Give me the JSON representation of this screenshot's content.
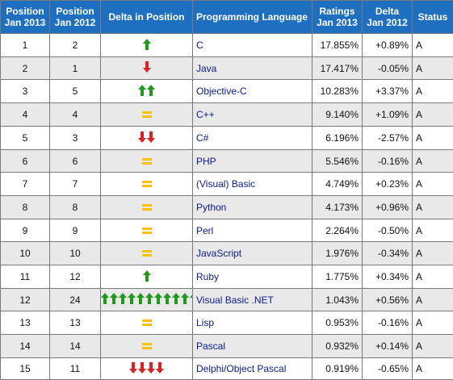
{
  "headers": {
    "pos2013": [
      "Position",
      "Jan 2013"
    ],
    "pos2012": [
      "Position",
      "Jan 2012"
    ],
    "delta_pos": "Delta in Position",
    "language": "Programming Language",
    "ratings": [
      "Ratings",
      "Jan 2013"
    ],
    "delta": [
      "Delta",
      "Jan 2012"
    ],
    "status": "Status"
  },
  "colors": {
    "header_bg": "#1e6fbf",
    "up_arrow": "#1f9a1f",
    "down_arrow": "#e02020",
    "equal": "#ffc000",
    "language_text": "#0b1a8c"
  },
  "rows": [
    {
      "pos2013": "1",
      "pos2012": "2",
      "delta_icon": {
        "type": "up",
        "count": 1
      },
      "language": "C",
      "rating": "17.855%",
      "delta": "+0.89%",
      "status": "A"
    },
    {
      "pos2013": "2",
      "pos2012": "1",
      "delta_icon": {
        "type": "down",
        "count": 1
      },
      "language": "Java",
      "rating": "17.417%",
      "delta": "-0.05%",
      "status": "A"
    },
    {
      "pos2013": "3",
      "pos2012": "5",
      "delta_icon": {
        "type": "up",
        "count": 2
      },
      "language": "Objective-C",
      "rating": "10.283%",
      "delta": "+3.37%",
      "status": "A"
    },
    {
      "pos2013": "4",
      "pos2012": "4",
      "delta_icon": {
        "type": "equal",
        "count": 1
      },
      "language": "C++",
      "rating": "9.140%",
      "delta": "+1.09%",
      "status": "A"
    },
    {
      "pos2013": "5",
      "pos2012": "3",
      "delta_icon": {
        "type": "down",
        "count": 2
      },
      "language": "C#",
      "rating": "6.196%",
      "delta": "-2.57%",
      "status": "A"
    },
    {
      "pos2013": "6",
      "pos2012": "6",
      "delta_icon": {
        "type": "equal",
        "count": 1
      },
      "language": "PHP",
      "rating": "5.546%",
      "delta": "-0.16%",
      "status": "A"
    },
    {
      "pos2013": "7",
      "pos2012": "7",
      "delta_icon": {
        "type": "equal",
        "count": 1
      },
      "language": "(Visual) Basic",
      "rating": "4.749%",
      "delta": "+0.23%",
      "status": "A"
    },
    {
      "pos2013": "8",
      "pos2012": "8",
      "delta_icon": {
        "type": "equal",
        "count": 1
      },
      "language": "Python",
      "rating": "4.173%",
      "delta": "+0.96%",
      "status": "A"
    },
    {
      "pos2013": "9",
      "pos2012": "9",
      "delta_icon": {
        "type": "equal",
        "count": 1
      },
      "language": "Perl",
      "rating": "2.264%",
      "delta": "-0.50%",
      "status": "A"
    },
    {
      "pos2013": "10",
      "pos2012": "10",
      "delta_icon": {
        "type": "equal",
        "count": 1
      },
      "language": "JavaScript",
      "rating": "1.976%",
      "delta": "-0.34%",
      "status": "A"
    },
    {
      "pos2013": "11",
      "pos2012": "12",
      "delta_icon": {
        "type": "up",
        "count": 1
      },
      "language": "Ruby",
      "rating": "1.775%",
      "delta": "+0.34%",
      "status": "A"
    },
    {
      "pos2013": "12",
      "pos2012": "24",
      "delta_icon": {
        "type": "up",
        "count": 12
      },
      "language": "Visual Basic .NET",
      "rating": "1.043%",
      "delta": "+0.56%",
      "status": "A"
    },
    {
      "pos2013": "13",
      "pos2012": "13",
      "delta_icon": {
        "type": "equal",
        "count": 1
      },
      "language": "Lisp",
      "rating": "0.953%",
      "delta": "-0.16%",
      "status": "A"
    },
    {
      "pos2013": "14",
      "pos2012": "14",
      "delta_icon": {
        "type": "equal",
        "count": 1
      },
      "language": "Pascal",
      "rating": "0.932%",
      "delta": "+0.14%",
      "status": "A"
    },
    {
      "pos2013": "15",
      "pos2012": "11",
      "delta_icon": {
        "type": "down",
        "count": 4
      },
      "language": "Delphi/Object Pascal",
      "rating": "0.919%",
      "delta": "-0.65%",
      "status": "A"
    }
  ]
}
